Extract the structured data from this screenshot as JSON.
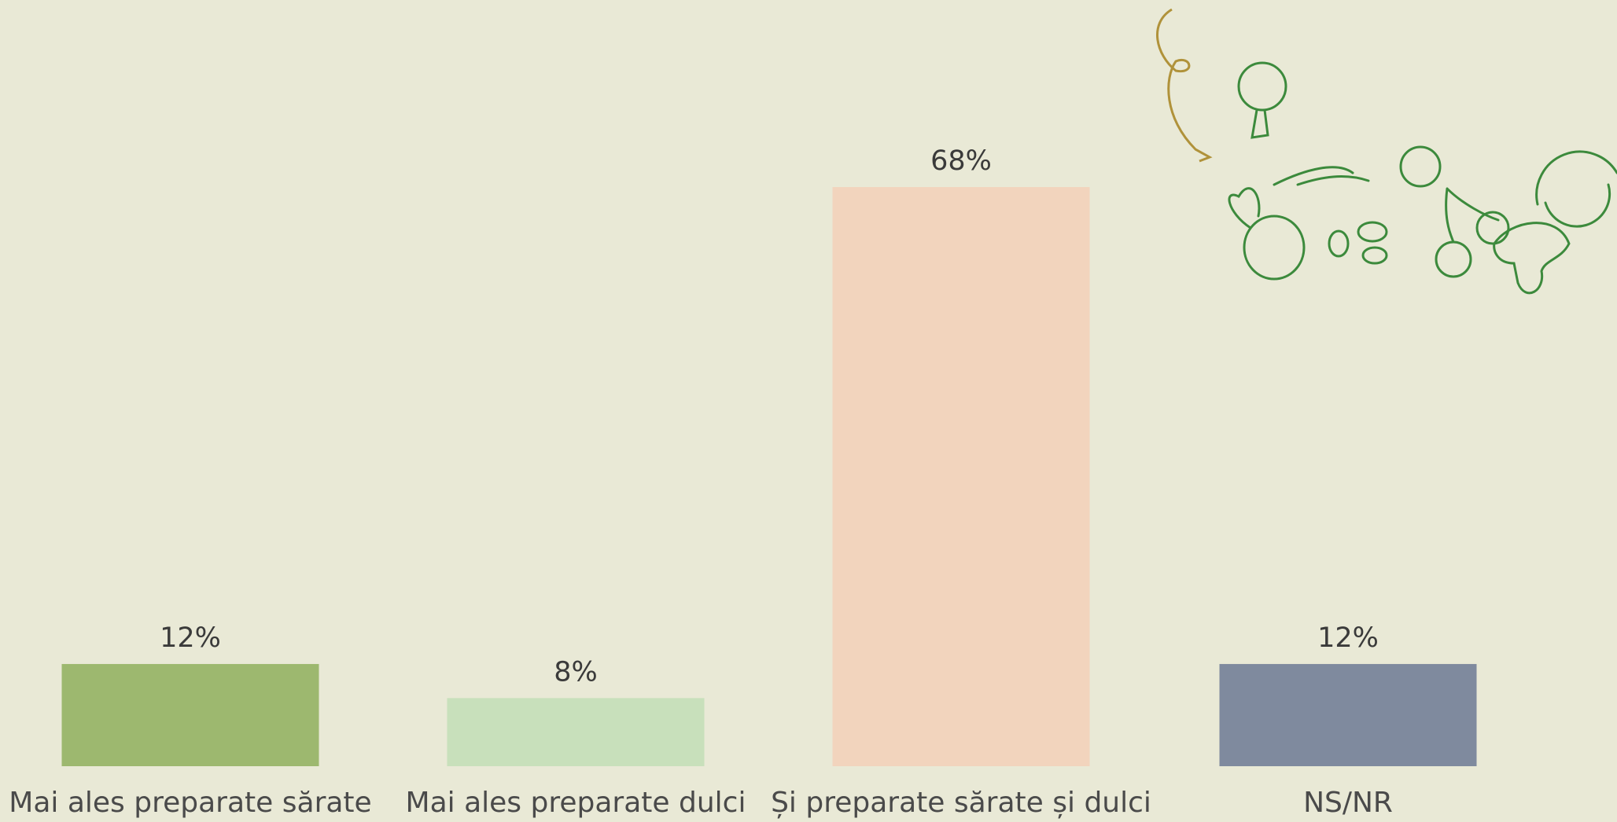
{
  "chart_data": {
    "type": "bar",
    "categories": [
      "Mai ales preparate sărate",
      "Mai ales preparate dulci",
      "Și preparate sărate și dulci",
      "NS/NR"
    ],
    "values": [
      12,
      8,
      68,
      12
    ],
    "value_labels": [
      "12%",
      "8%",
      "68%",
      "12%"
    ],
    "colors": [
      "#9db86f",
      "#c8e0bb",
      "#f2d4bd",
      "#7f8a9e"
    ]
  }
}
